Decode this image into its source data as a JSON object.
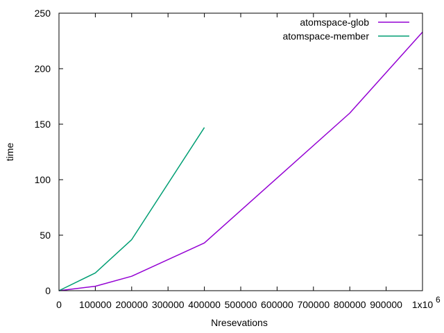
{
  "chart_data": {
    "type": "line",
    "xlabel": "Nresevations",
    "ylabel": "time",
    "xlim": [
      0,
      1000000
    ],
    "ylim": [
      0,
      250
    ],
    "x_ticks": [
      0,
      100000,
      200000,
      300000,
      400000,
      500000,
      600000,
      700000,
      800000,
      900000,
      1000000
    ],
    "x_tick_labels": [
      "0",
      "100000",
      "200000",
      "300000",
      "400000",
      "500000",
      "600000",
      "700000",
      "800000",
      "900000",
      "1x10"
    ],
    "x_tick_exponent": "6",
    "y_ticks": [
      0,
      50,
      100,
      150,
      200,
      250
    ],
    "y_tick_labels": [
      "0",
      "50",
      "100",
      "150",
      "200",
      "250"
    ],
    "legend_position": "top-right",
    "grid": false,
    "series": [
      {
        "name": "atomspace-glob",
        "color": "#9400d3",
        "x": [
          0,
          100000,
          200000,
          400000,
          800000,
          1000000
        ],
        "y": [
          0,
          4,
          13,
          43,
          160,
          233
        ]
      },
      {
        "name": "atomspace-member",
        "color": "#009e73",
        "x": [
          0,
          100000,
          200000,
          400000
        ],
        "y": [
          0,
          16,
          46,
          147
        ]
      }
    ]
  }
}
